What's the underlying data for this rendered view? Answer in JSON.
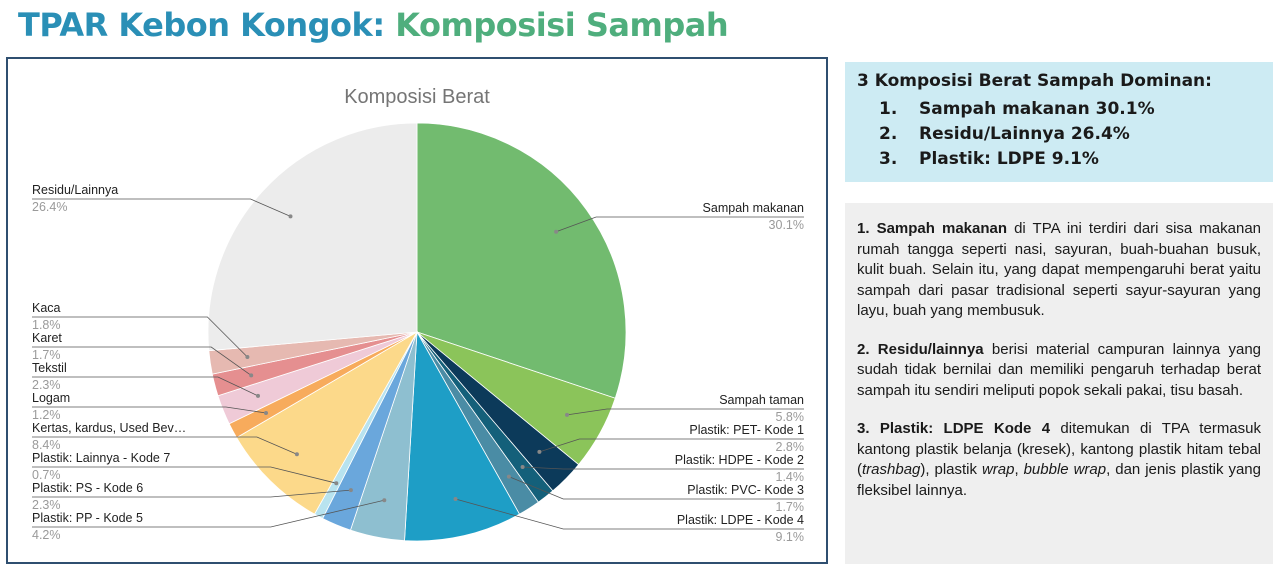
{
  "header": {
    "title_part1": "TPAR Kebon Kongok:",
    "title_part2": "Komposisi Sampah"
  },
  "summary": {
    "title": "3 Komposisi Berat Sampah Dominan:",
    "items": [
      {
        "num": "1.",
        "text": "Sampah makanan 30.1%"
      },
      {
        "num": "2.",
        "text": "Residu/Lainnya 26.4%"
      },
      {
        "num": "3.",
        "text": "Plastik: LDPE 9.1%"
      }
    ]
  },
  "details": [
    {
      "bold": "1. Sampah makanan",
      "text": " di TPA ini terdiri dari sisa makanan rumah tangga seperti nasi, sayuran, buah-buahan busuk, kulit buah. Selain itu, yang dapat mempengaruhi berat yaitu sampah dari pasar tradisional seperti sayur-sayuran yang layu, buah yang membusuk."
    },
    {
      "bold": "2. Residu/lainnya",
      "text": " berisi material campuran lainnya yang sudah tidak bernilai dan memiliki pengaruh terhadap berat sampah itu sendiri meliputi popok sekali pakai, tisu basah."
    },
    {
      "bold": "3. Plastik: LDPE Kode 4",
      "text_parts": [
        " ditemukan di TPA termasuk kantong plastik belanja (kresek), kantong plastik hitam tebal (",
        "trashbag",
        "), plastik ",
        "wrap",
        ", ",
        "bubble wrap",
        ", dan jenis plastik yang fleksibel lainnya."
      ]
    }
  ],
  "chart_data": {
    "type": "pie",
    "title": "Komposisi Berat",
    "slices": [
      {
        "label": "Sampah makanan",
        "value": 30.1,
        "pct": "30.1%",
        "color": "#72bb6f"
      },
      {
        "label": "Sampah taman",
        "value": 5.8,
        "pct": "5.8%",
        "color": "#8bc45a"
      },
      {
        "label": "Plastik: PET- Kode 1",
        "value": 2.8,
        "pct": "2.8%",
        "color": "#0c3a5a"
      },
      {
        "label": "Plastik: HDPE - Kode 2",
        "value": 1.4,
        "pct": "1.4%",
        "color": "#14607a"
      },
      {
        "label": "Plastik: PVC- Kode 3",
        "value": 1.7,
        "pct": "1.7%",
        "color": "#4a8ca5"
      },
      {
        "label": "Plastik: LDPE - Kode 4",
        "value": 9.1,
        "pct": "9.1%",
        "color": "#1e9ec6"
      },
      {
        "label": "Plastik: PP - Kode 5",
        "value": 4.2,
        "pct": "4.2%",
        "color": "#8ebfd0"
      },
      {
        "label": "Plastik: PS - Kode 6",
        "value": 2.3,
        "pct": "2.3%",
        "color": "#6aa7dc"
      },
      {
        "label": "Plastik: Lainnya - Kode 7",
        "value": 0.7,
        "pct": "0.7%",
        "color": "#b8e3ef"
      },
      {
        "label": "Kertas, kardus, Used Bev…",
        "value": 8.4,
        "pct": "8.4%",
        "color": "#fcd98a"
      },
      {
        "label": "Logam",
        "value": 1.2,
        "pct": "1.2%",
        "color": "#f7ab5c"
      },
      {
        "label": "Tekstil",
        "value": 2.3,
        "pct": "2.3%",
        "color": "#efcad7"
      },
      {
        "label": "Karet",
        "value": 1.7,
        "pct": "1.7%",
        "color": "#e58f90"
      },
      {
        "label": "Kaca",
        "value": 1.8,
        "pct": "1.8%",
        "color": "#e6b9b1"
      },
      {
        "label": "Residu/Lainnya",
        "value": 26.4,
        "pct": "26.4%",
        "color": "#ececec"
      }
    ]
  }
}
